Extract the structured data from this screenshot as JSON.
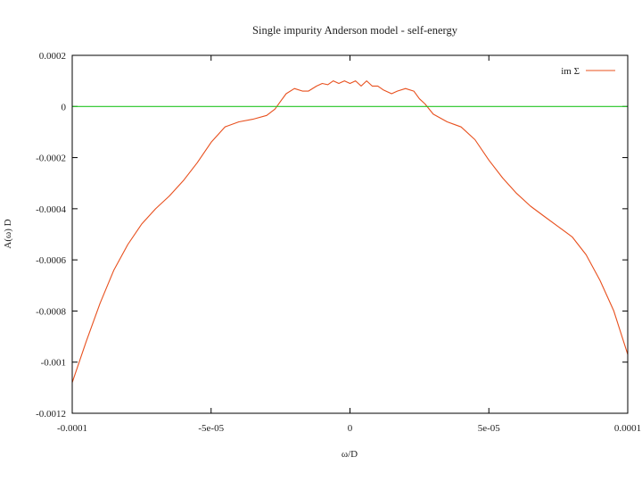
{
  "chart_data": {
    "type": "line",
    "title": "Single impurity Anderson model - self-energy",
    "xlabel": "ω/D",
    "ylabel": "A(ω) D",
    "xlim": [
      -0.0001,
      0.0001
    ],
    "ylim": [
      -0.0012,
      0.0002
    ],
    "x_ticks": [
      {
        "value": -0.0001,
        "label": "-0.0001"
      },
      {
        "value": -5e-05,
        "label": "-5e-05"
      },
      {
        "value": 0,
        "label": "0"
      },
      {
        "value": 5e-05,
        "label": "5e-05"
      },
      {
        "value": 0.0001,
        "label": "0.0001"
      }
    ],
    "y_ticks": [
      {
        "value": 0.0002,
        "label": "0.0002"
      },
      {
        "value": 0,
        "label": "0"
      },
      {
        "value": -0.0002,
        "label": "-0.0002"
      },
      {
        "value": -0.0004,
        "label": "-0.0004"
      },
      {
        "value": -0.0006,
        "label": "-0.0006"
      },
      {
        "value": -0.0008,
        "label": "-0.0008"
      },
      {
        "value": -0.001,
        "label": "-0.001"
      },
      {
        "value": -0.0012,
        "label": "-0.0012"
      }
    ],
    "legend_position": "top-right",
    "grid": false,
    "series": [
      {
        "name": "im Σ",
        "color": "#e8501e",
        "x": [
          -0.0001,
          -9.5e-05,
          -9e-05,
          -8.5e-05,
          -8e-05,
          -7.5e-05,
          -7e-05,
          -6.5e-05,
          -6e-05,
          -5.5e-05,
          -5e-05,
          -4.5e-05,
          -4e-05,
          -3.5e-05,
          -3e-05,
          -2.7e-05,
          -2.5e-05,
          -2.3e-05,
          -2e-05,
          -1.7e-05,
          -1.5e-05,
          -1.2e-05,
          -1e-05,
          -8e-06,
          -6e-06,
          -4e-06,
          -2e-06,
          0,
          2e-06,
          4e-06,
          6e-06,
          8e-06,
          1e-05,
          1.2e-05,
          1.5e-05,
          1.7e-05,
          2e-05,
          2.3e-05,
          2.5e-05,
          2.7e-05,
          3e-05,
          3.5e-05,
          4e-05,
          4.5e-05,
          5e-05,
          5.5e-05,
          6e-05,
          6.5e-05,
          7e-05,
          7.5e-05,
          8e-05,
          8.5e-05,
          9e-05,
          9.5e-05,
          0.0001
        ],
        "y": [
          -0.00108,
          -0.00092,
          -0.00077,
          -0.00064,
          -0.00054,
          -0.00046,
          -0.0004,
          -0.00035,
          -0.00029,
          -0.00022,
          -0.00014,
          -8e-05,
          -6e-05,
          -5e-05,
          -3.5e-05,
          -1e-05,
          2e-05,
          5e-05,
          7e-05,
          6e-05,
          6e-05,
          8e-05,
          9e-05,
          8.5e-05,
          0.0001,
          9e-05,
          0.0001,
          9e-05,
          0.0001,
          8e-05,
          0.0001,
          8e-05,
          8e-05,
          6.5e-05,
          5e-05,
          6e-05,
          7e-05,
          6e-05,
          3e-05,
          1e-05,
          -3e-05,
          -6e-05,
          -8e-05,
          -0.00013,
          -0.00021,
          -0.00028,
          -0.00034,
          -0.00039,
          -0.00043,
          -0.00047,
          -0.00051,
          -0.00058,
          -0.00068,
          -0.0008,
          -0.00097
        ]
      },
      {
        "name": "",
        "color": "#22c422",
        "x": [
          -0.0001,
          0.0001
        ],
        "y": [
          0,
          0
        ]
      }
    ]
  }
}
